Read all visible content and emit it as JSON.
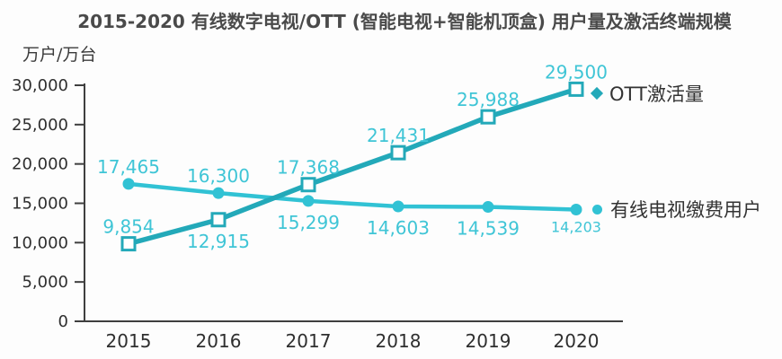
{
  "chart_data": {
    "type": "line",
    "title": "2015-2020 有线数字电视/OTT (智能电视+智能机顶盒) 用户量及激活终端规模",
    "xlabel": "",
    "ylabel": "万户/万台",
    "ylim": [
      0,
      30000
    ],
    "grid": false,
    "legend_position": "right",
    "categories": [
      "2015",
      "2016",
      "2017",
      "2018",
      "2019",
      "2020"
    ],
    "y_tick_values": [
      0,
      5000,
      10000,
      15000,
      20000,
      25000,
      30000
    ],
    "y_tick_labels": [
      "0",
      "5,000",
      "10,000",
      "15,000",
      "20,000",
      "25,000",
      "30,000"
    ],
    "label_color": "#3fc5d6",
    "axis_color": "#3f3f3f",
    "axis_text_color": "#2f2f2f",
    "series": [
      {
        "name": "OTT激活量",
        "values": [
          9854,
          12915,
          17368,
          21431,
          25988,
          29500
        ],
        "labels": [
          "9,854",
          "12,915",
          "17,368",
          "21,431",
          "25,988",
          "29,500"
        ],
        "label_side": [
          "above",
          "below",
          "above",
          "above",
          "above",
          "above"
        ],
        "label_font_sizes": [
          20,
          20,
          20,
          20,
          20,
          20
        ],
        "color": "#23a9b9",
        "marker": "square-hollow",
        "legend_marker": "diamond"
      },
      {
        "name": "有线电视缴费用户",
        "values": [
          17465,
          16300,
          15299,
          14603,
          14539,
          14203
        ],
        "labels": [
          "17,465",
          "16,300",
          "15,299",
          "14,603",
          "14,539",
          "14,203"
        ],
        "label_side": [
          "above",
          "above",
          "below",
          "below",
          "below",
          "below"
        ],
        "label_font_sizes": [
          20,
          20,
          20,
          20,
          20,
          16
        ],
        "color": "#31c2d4",
        "marker": "circle",
        "legend_marker": "circle"
      }
    ]
  }
}
